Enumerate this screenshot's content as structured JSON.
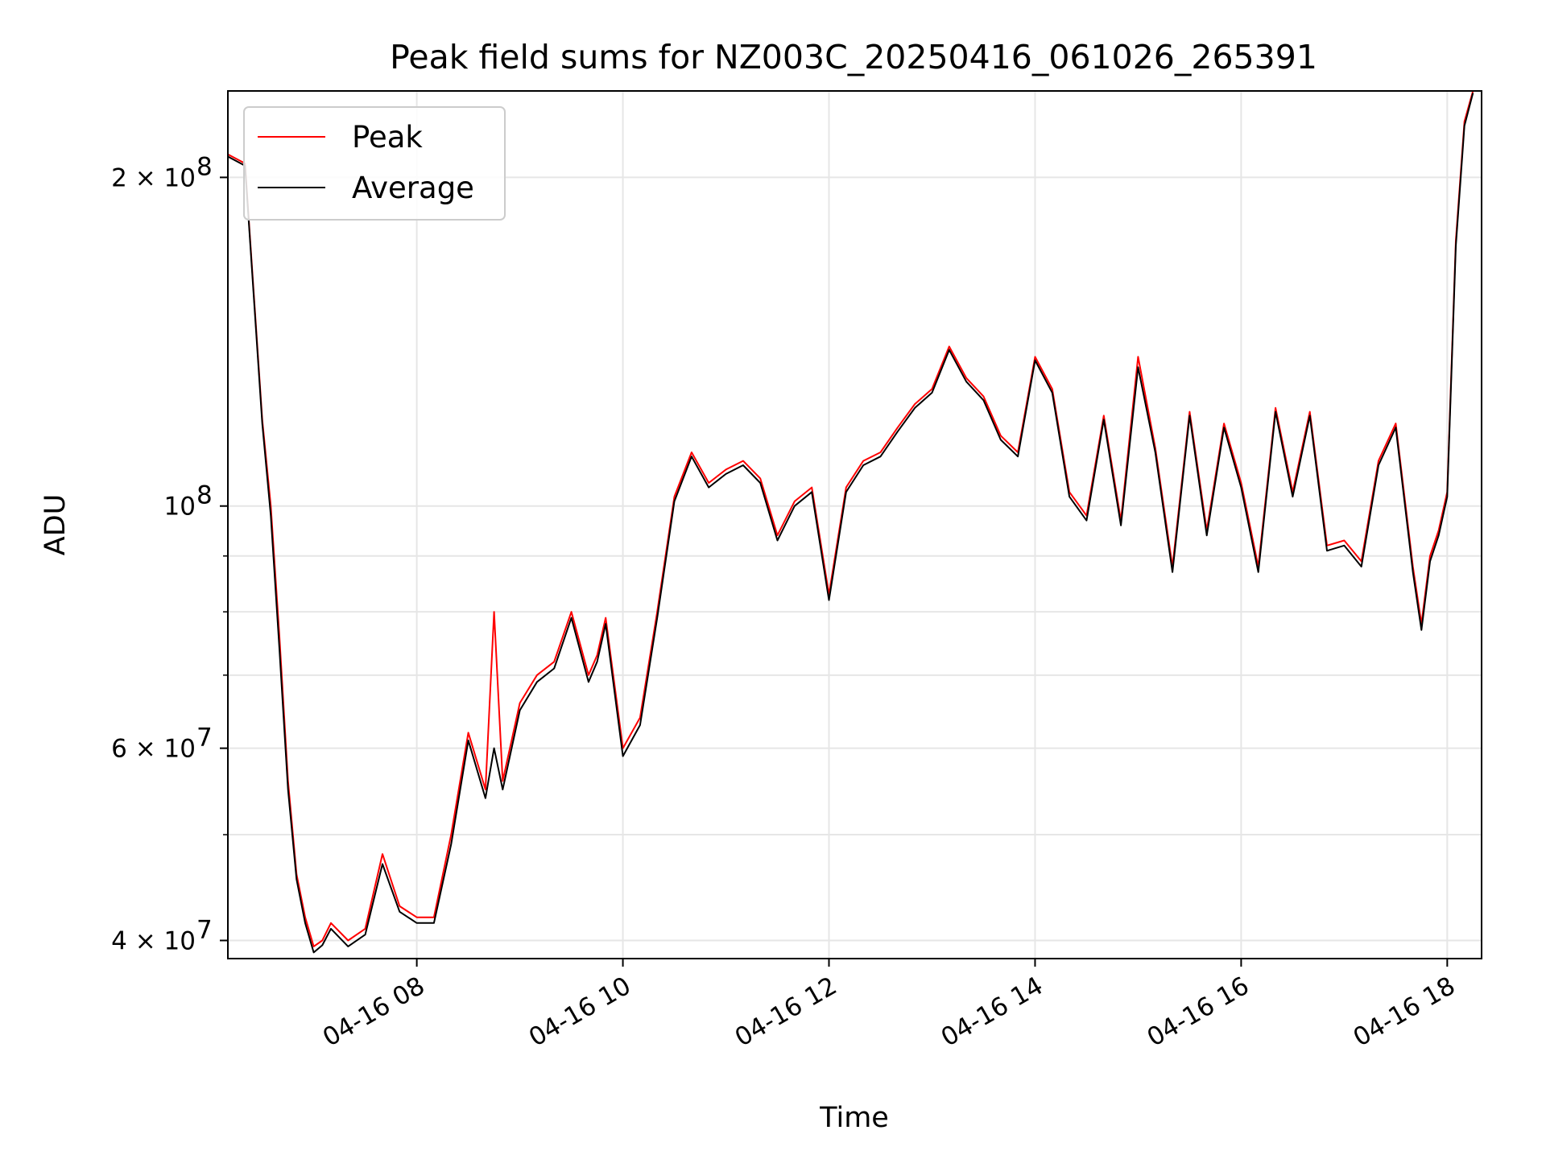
{
  "chart_data": {
    "type": "line",
    "title": "Peak field sums for NZ003C_20250416_061026_265391",
    "xlabel": "Time",
    "ylabel": "ADU",
    "yscale": "log",
    "ylim": [
      38500000,
      240000000
    ],
    "xlim": [
      "04-16 06:10",
      "04-16 18:20"
    ],
    "grid": true,
    "legend_position": "top-left",
    "x_ticks": [
      "04-16 08",
      "04-16 10",
      "04-16 12",
      "04-16 14",
      "04-16 16",
      "04-16 18"
    ],
    "y_ticks": [
      {
        "label": "4 × 10",
        "exp": "7",
        "value": 40000000
      },
      {
        "label": "6 × 10",
        "exp": "7",
        "value": 60000000
      },
      {
        "label": "10",
        "exp": "8",
        "value": 100000000
      },
      {
        "label": "2 × 10",
        "exp": "8",
        "value": 200000000
      }
    ],
    "y_minor_ticks": [
      50000000,
      70000000,
      80000000,
      90000000
    ],
    "x": [
      "06:10",
      "06:20",
      "06:30",
      "06:35",
      "06:40",
      "06:45",
      "06:50",
      "06:55",
      "07:00",
      "07:05",
      "07:10",
      "07:20",
      "07:30",
      "07:40",
      "07:50",
      "08:00",
      "08:10",
      "08:20",
      "08:30",
      "08:40",
      "08:45",
      "08:50",
      "09:00",
      "09:10",
      "09:20",
      "09:30",
      "09:40",
      "09:45",
      "09:50",
      "10:00",
      "10:10",
      "10:20",
      "10:30",
      "10:40",
      "10:50",
      "11:00",
      "11:10",
      "11:20",
      "11:30",
      "11:40",
      "11:50",
      "12:00",
      "12:10",
      "12:20",
      "12:30",
      "12:40",
      "12:50",
      "13:00",
      "13:10",
      "13:20",
      "13:30",
      "13:40",
      "13:50",
      "14:00",
      "14:10",
      "14:20",
      "14:30",
      "14:40",
      "14:50",
      "15:00",
      "15:10",
      "15:20",
      "15:30",
      "15:40",
      "15:50",
      "16:00",
      "16:10",
      "16:20",
      "16:30",
      "16:40",
      "16:50",
      "17:00",
      "17:10",
      "17:20",
      "17:30",
      "17:40",
      "17:45",
      "17:50",
      "17:55",
      "18:00",
      "18:05",
      "18:10",
      "18:15"
    ],
    "series": [
      {
        "name": "Peak",
        "color": "#ff0000",
        "values": [
          210000000,
          206000000,
          120000000,
          100000000,
          76000000,
          56000000,
          46000000,
          42000000,
          39500000,
          40000000,
          41500000,
          40000000,
          41000000,
          48000000,
          43000000,
          42000000,
          42000000,
          50000000,
          62000000,
          55000000,
          80000000,
          56000000,
          66000000,
          70000000,
          72000000,
          80000000,
          70000000,
          73000000,
          79000000,
          60000000,
          64000000,
          80000000,
          102000000,
          112000000,
          105000000,
          108000000,
          110000000,
          106000000,
          94000000,
          101000000,
          104000000,
          83000000,
          104000000,
          110000000,
          112000000,
          118000000,
          124000000,
          128000000,
          140000000,
          131000000,
          126000000,
          116000000,
          112000000,
          137000000,
          128000000,
          103000000,
          98000000,
          121000000,
          97000000,
          137000000,
          113000000,
          88000000,
          122000000,
          95000000,
          119000000,
          105000000,
          88000000,
          123000000,
          103000000,
          122000000,
          92000000,
          93000000,
          89000000,
          110000000,
          119000000,
          88000000,
          78000000,
          90000000,
          95000000,
          103000000,
          175000000,
          225000000,
          240000000
        ]
      },
      {
        "name": "Average",
        "color": "#000000",
        "values": [
          209000000,
          205000000,
          119000000,
          98000000,
          74000000,
          55000000,
          45500000,
          41500000,
          39000000,
          39600000,
          41000000,
          39500000,
          40500000,
          47000000,
          42500000,
          41500000,
          41500000,
          49000000,
          61000000,
          54000000,
          60000000,
          55000000,
          65000000,
          69000000,
          71000000,
          79000000,
          69000000,
          72000000,
          78000000,
          59000000,
          63000000,
          79000000,
          101000000,
          111000000,
          104000000,
          107000000,
          109000000,
          105000000,
          93000000,
          100000000,
          103000000,
          82000000,
          103000000,
          109000000,
          111000000,
          117000000,
          123000000,
          127000000,
          139000000,
          130000000,
          125000000,
          115000000,
          111000000,
          136000000,
          127000000,
          102000000,
          97000000,
          120000000,
          96000000,
          134000000,
          112000000,
          87000000,
          121000000,
          94000000,
          118000000,
          104000000,
          87000000,
          122000000,
          102000000,
          121000000,
          91000000,
          92000000,
          88000000,
          109000000,
          118000000,
          87000000,
          77000000,
          89000000,
          94000000,
          102000000,
          173000000,
          223000000,
          239000000
        ]
      }
    ]
  }
}
